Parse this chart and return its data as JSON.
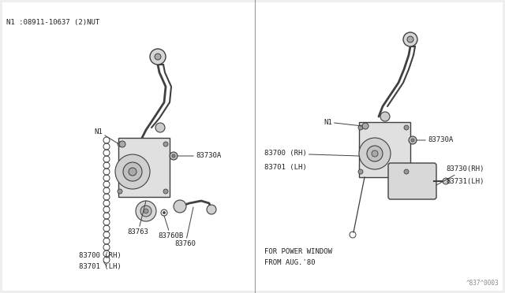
{
  "bg_color": "#ffffff",
  "panel_bg": "#f5f5f5",
  "line_color": "#404040",
  "text_color": "#222222",
  "label_color": "#444444",
  "title_note": "N1 :08911-10637 (2)NUT",
  "bottom_left_text": [
    "FOR POWER WINDOW",
    "FROM AUG.'80"
  ],
  "bottom_right_text": "^837^0003",
  "font_size_labels": 6.5,
  "font_size_note": 6.5,
  "font_size_bottom": 6.5
}
